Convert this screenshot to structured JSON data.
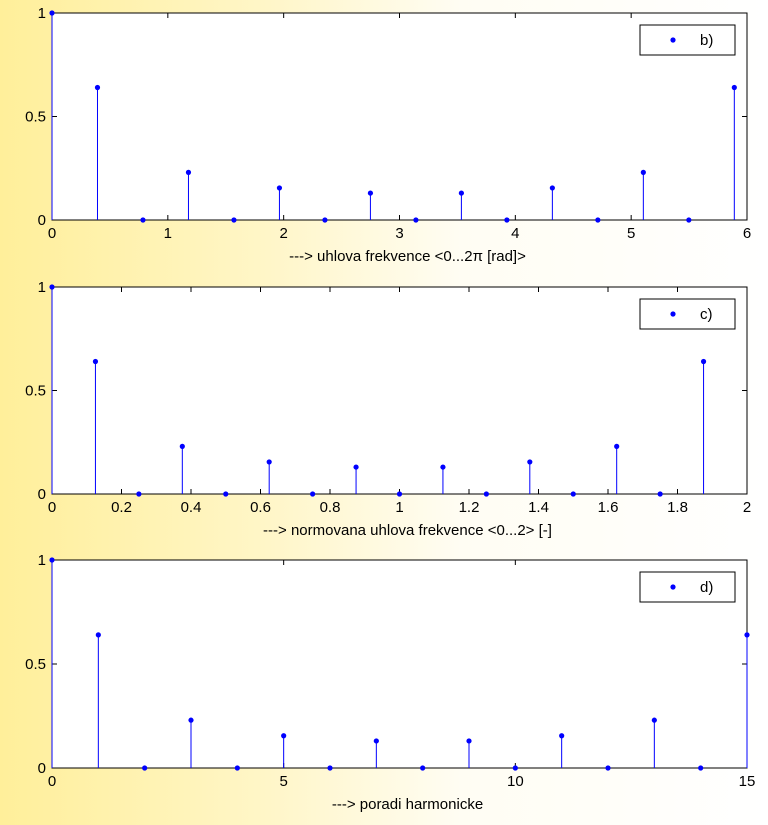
{
  "chart_data": [
    {
      "type": "stem",
      "legend": "b)",
      "legend_placement": "top-right",
      "xlabel": "---> uhlova frekvence <0...2π  [rad]>",
      "ylabel": "",
      "xlim": [
        0,
        6
      ],
      "ylim": [
        0,
        1
      ],
      "grid": false,
      "xticks": [
        0,
        1,
        2,
        3,
        4,
        5,
        6
      ],
      "xtick_labels": [
        "0",
        "1",
        "2",
        "3",
        "4",
        "5",
        "6"
      ],
      "yticks": [
        0,
        0.5,
        1
      ],
      "ytick_labels": [
        "0",
        "0.5",
        "1"
      ],
      "x": [
        0,
        0.3927,
        0.7854,
        1.1781,
        1.5708,
        1.9635,
        2.3562,
        2.7489,
        3.1416,
        3.5343,
        3.927,
        4.3197,
        4.7124,
        5.1051,
        5.4978,
        5.8905
      ],
      "y": [
        1,
        0.64,
        0,
        0.23,
        0,
        0.155,
        0,
        0.13,
        0,
        0.13,
        0,
        0.155,
        0,
        0.23,
        0,
        0.64
      ]
    },
    {
      "type": "stem",
      "legend": "c)",
      "legend_placement": "top-right",
      "xlabel": "---> normovana uhlova frekvence <0...2>  [-]",
      "ylabel": "",
      "xlim": [
        0,
        2
      ],
      "ylim": [
        0,
        1
      ],
      "grid": false,
      "xticks": [
        0,
        0.2,
        0.4,
        0.6,
        0.8,
        1,
        1.2,
        1.4,
        1.6,
        1.8,
        2
      ],
      "xtick_labels": [
        "0",
        "0.2",
        "0.4",
        "0.6",
        "0.8",
        "1",
        "1.2",
        "1.4",
        "1.6",
        "1.8",
        "2"
      ],
      "yticks": [
        0,
        0.5,
        1
      ],
      "ytick_labels": [
        "0",
        "0.5",
        "1"
      ],
      "x": [
        0,
        0.125,
        0.25,
        0.375,
        0.5,
        0.625,
        0.75,
        0.875,
        1,
        1.125,
        1.25,
        1.375,
        1.5,
        1.625,
        1.75,
        1.875
      ],
      "y": [
        1,
        0.64,
        0,
        0.23,
        0,
        0.155,
        0,
        0.13,
        0,
        0.13,
        0,
        0.155,
        0,
        0.23,
        0,
        0.64
      ]
    },
    {
      "type": "stem",
      "legend": "d)",
      "legend_placement": "top-right",
      "xlabel": "---> poradi harmonicke",
      "ylabel": "",
      "xlim": [
        0,
        15
      ],
      "ylim": [
        0,
        1
      ],
      "grid": false,
      "xticks": [
        0,
        5,
        10,
        15
      ],
      "xtick_labels": [
        "0",
        "5",
        "10",
        "15"
      ],
      "yticks": [
        0,
        0.5,
        1
      ],
      "ytick_labels": [
        "0",
        "0.5",
        "1"
      ],
      "x": [
        0,
        1,
        2,
        3,
        4,
        5,
        6,
        7,
        8,
        9,
        10,
        11,
        12,
        13,
        14,
        15
      ],
      "y": [
        1,
        0.64,
        0,
        0.23,
        0,
        0.155,
        0,
        0.13,
        0,
        0.13,
        0,
        0.155,
        0,
        0.23,
        0,
        0.64
      ]
    }
  ],
  "colors": {
    "stem": "#0000ff",
    "axes": "#000000",
    "plot_background": "#ffffff"
  }
}
